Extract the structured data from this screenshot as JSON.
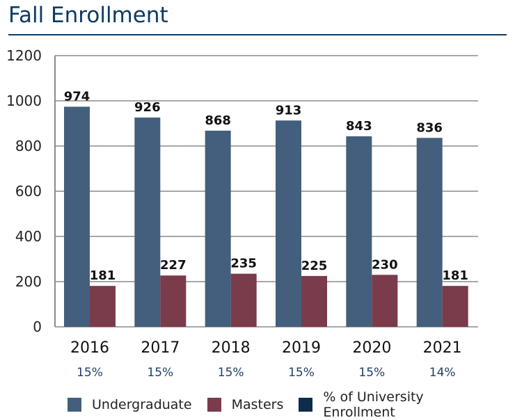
{
  "chart_data": {
    "type": "bar",
    "title": "Fall Enrollment",
    "categories": [
      "2016",
      "2017",
      "2018",
      "2019",
      "2020",
      "2021"
    ],
    "series": [
      {
        "name": "Undergraduate",
        "values": [
          974,
          926,
          868,
          913,
          843,
          836
        ],
        "color": "#435f7d"
      },
      {
        "name": "Masters",
        "values": [
          181,
          227,
          235,
          225,
          230,
          181
        ],
        "color": "#7a3b4b"
      }
    ],
    "percent_label": {
      "name": "% of University Enrollment",
      "values": [
        "15%",
        "15%",
        "15%",
        "15%",
        "15%",
        "14%"
      ],
      "color": "#0e2c4b"
    },
    "ylim": [
      0,
      1200
    ],
    "yticks": [
      0,
      200,
      400,
      600,
      800,
      1000,
      1200
    ],
    "grid": true,
    "legend": "bottom"
  }
}
